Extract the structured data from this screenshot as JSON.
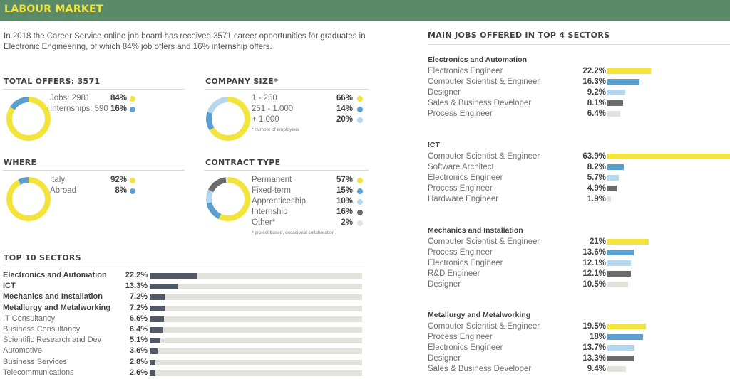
{
  "header": {
    "title": "LABOUR MARKET"
  },
  "intro": "In 2018 the Career Service online job board has received 3571 career opportunities for graduates in Electronic Engineering, of which 84% job offers and 16% internship offers.",
  "colors": {
    "yellow": "#f2e43a",
    "blue": "#5b9fd1",
    "lightblue": "#b6d8ee",
    "darkgray": "#6b6b6b",
    "lightgray": "#e3e3dd",
    "navy": "#505965",
    "header_green": "#5a8a68"
  },
  "chart_data": [
    {
      "type": "pie",
      "title": "TOTAL OFFERS: 3571",
      "labels": [
        "Jobs: 2981",
        "Internships: 590"
      ],
      "values": [
        84,
        16
      ],
      "colors": [
        "#f2e43a",
        "#5b9fd1"
      ]
    },
    {
      "type": "pie",
      "title": "COMPANY SIZE*",
      "labels": [
        "1 - 250",
        "251 - 1.000",
        "+ 1.000"
      ],
      "values": [
        66,
        14,
        20
      ],
      "colors": [
        "#f2e43a",
        "#5b9fd1",
        "#b6d8ee"
      ],
      "note": "* number of employees"
    },
    {
      "type": "pie",
      "title": "WHERE",
      "labels": [
        "Italy",
        "Abroad"
      ],
      "values": [
        92,
        8
      ],
      "colors": [
        "#f2e43a",
        "#5b9fd1"
      ]
    },
    {
      "type": "pie",
      "title": "CONTRACT TYPE",
      "labels": [
        "Permanent",
        "Fixed-term",
        "Apprenticeship",
        "Internship",
        "Other*"
      ],
      "values": [
        57,
        15,
        10,
        16,
        2
      ],
      "colors": [
        "#f2e43a",
        "#5b9fd1",
        "#b6d8ee",
        "#6b6b6b",
        "#e3e3dd"
      ],
      "note": "* project based, occasional collaboration"
    },
    {
      "type": "bar",
      "title": "TOP 10 SECTORS",
      "categories": [
        "Electronics and Automation",
        "ICT",
        "Mechanics and Installation",
        "Metallurgy and Metalworking",
        "IT Consultancy",
        "Business Consultancy",
        "Scientific Research and Dev",
        "Automotive",
        "Business Services",
        "Telecommunications"
      ],
      "values": [
        22.2,
        13.3,
        7.2,
        7.2,
        6.6,
        6.4,
        5.1,
        3.6,
        2.8,
        2.6
      ],
      "bold": [
        true,
        true,
        true,
        true,
        false,
        false,
        false,
        false,
        false,
        false
      ],
      "xlim": [
        0,
        100
      ]
    },
    {
      "type": "bar",
      "title": "MAIN JOBS OFFERED IN TOP 4 SECTORS",
      "groups": [
        {
          "name": "Electronics and Automation",
          "categories": [
            "Electronics Engineer",
            "Computer Scientist & Engineer",
            "Designer",
            "Sales & Business Developer",
            "Process Engineer"
          ],
          "values": [
            22.2,
            16.3,
            9.2,
            8.1,
            6.4
          ]
        },
        {
          "name": "ICT",
          "categories": [
            "Computer Scientist & Engineer",
            "Software Architect",
            "Electronics Engineer",
            "Process Engineer",
            "Hardware Engineer"
          ],
          "values": [
            63.9,
            8.2,
            5.7,
            4.9,
            1.9
          ]
        },
        {
          "name": "Mechanics and Installation",
          "categories": [
            "Computer Scientist & Engineer",
            "Process Engineer",
            "Electronics Engineer",
            "R&D Engineer",
            "Designer"
          ],
          "values": [
            21,
            13.6,
            12.1,
            12.1,
            10.5
          ]
        },
        {
          "name": "Metallurgy and Metalworking",
          "categories": [
            "Computer Scientist & Engineer",
            "Process Engineer",
            "Electronics Engineer",
            "Designer",
            "Sales & Business Developer"
          ],
          "values": [
            19.5,
            18,
            13.7,
            13.3,
            9.4
          ]
        }
      ],
      "bar_colors": [
        "#f2e43a",
        "#5b9fd1",
        "#b6d8ee",
        "#6b6b6b",
        "#e3e3dd"
      ]
    }
  ]
}
